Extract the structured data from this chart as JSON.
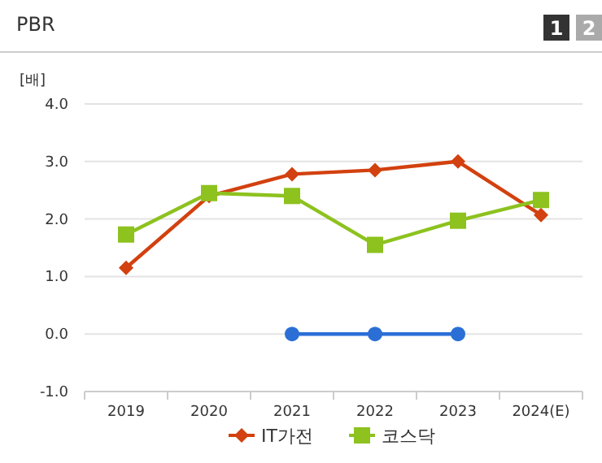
{
  "chart_data": {
    "type": "line",
    "title": "PBR",
    "ylabel": "[배]",
    "annotations": [
      "1",
      "2"
    ],
    "categories": [
      "2019",
      "2020",
      "2021",
      "2022",
      "2023",
      "2024(E)"
    ],
    "series": [
      {
        "color": "#2b6fd6",
        "marker": "circle",
        "values": [
          null,
          null,
          0,
          0,
          0,
          null
        ]
      },
      {
        "name": "IT가전",
        "color": "#d2410f",
        "marker": "diamond",
        "values": [
          1.15,
          2.4,
          2.78,
          2.85,
          3.0,
          2.07
        ]
      },
      {
        "name": "코스닥",
        "color": "#8dc21f",
        "marker": "square",
        "values": [
          1.73,
          2.45,
          2.4,
          1.55,
          1.97,
          2.33
        ]
      }
    ],
    "ylim": [
      -1,
      4
    ],
    "yticks": [
      {
        "value": -1,
        "label": "-1.0"
      },
      {
        "value": 0,
        "label": "0.0"
      },
      {
        "value": 1,
        "label": "1.0"
      },
      {
        "value": 2,
        "label": "2.0"
      },
      {
        "value": 3,
        "label": "3.0"
      },
      {
        "value": 4,
        "label": "4.0"
      }
    ],
    "grid": "y",
    "legend": "bottom"
  }
}
